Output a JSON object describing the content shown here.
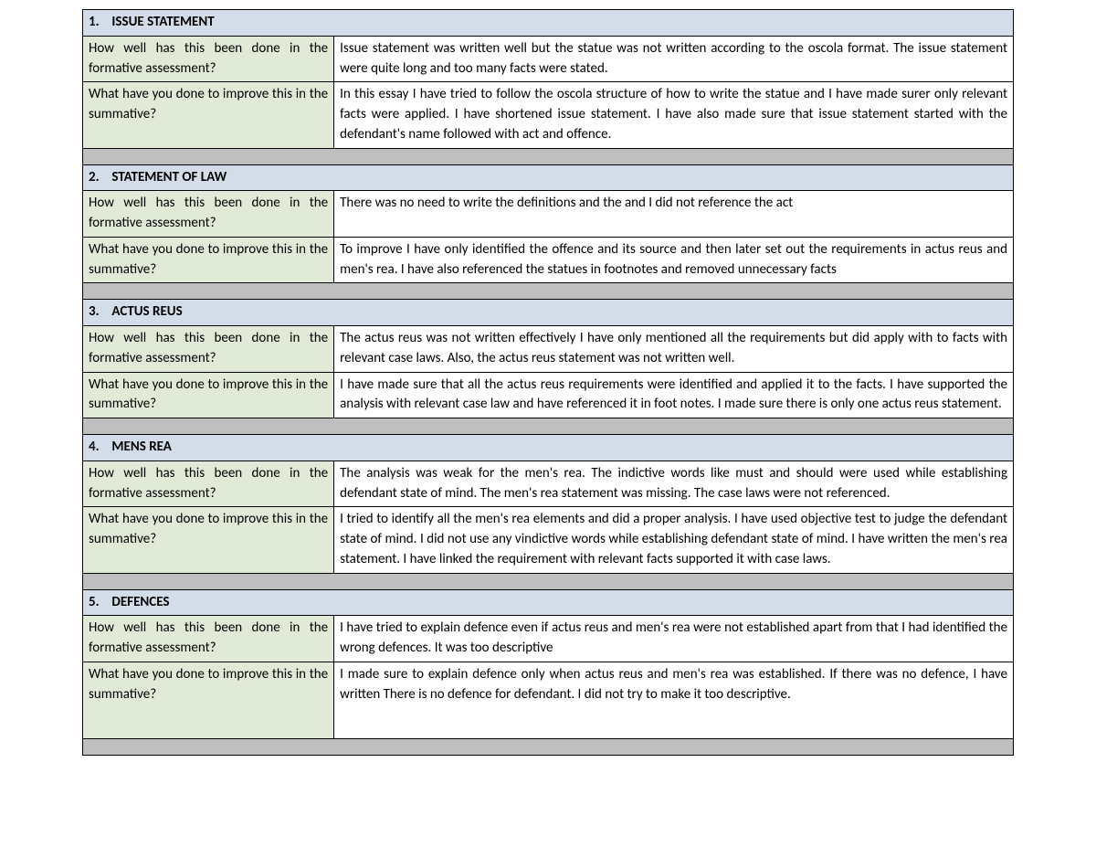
{
  "questions": {
    "q1": "How well has this been done in the formative assessment?",
    "q2": "What have you done to improve this in the summative?"
  },
  "sections": [
    {
      "num": "1.",
      "title": "ISSUE STATEMENT",
      "a1": "Issue statement was written well but the statue was not written according to the oscola format. The issue statement were quite long and too many facts were stated.",
      "a2": "In this essay I have tried to follow the oscola structure of how to write the statue and I have made surer only relevant facts were applied. I have shortened issue statement. I have also made sure that issue statement started with the defendant's name followed with act and offence."
    },
    {
      "num": "2.",
      "title": "STATEMENT OF LAW",
      "a1": "There was no need to write the definitions and the and I did not reference the act",
      "a2": "To improve I have only identified the offence and its source and then later set out the requirements in actus reus and men's rea. I have also referenced the statues in footnotes and removed unnecessary facts"
    },
    {
      "num": "3.",
      "title": "ACTUS REUS",
      "a1": "The actus reus was not written effectively I have only mentioned all the requirements but did apply with to facts with relevant case laws. Also, the actus reus statement was not written well.",
      "a2": "I have made sure that all the actus reus requirements were identified and applied it to the facts. I have supported the analysis with relevant case law and have referenced it in foot notes. I made sure there is only one actus reus statement."
    },
    {
      "num": "4.",
      "title": "MENS REA",
      "a1": "The analysis was weak for the men's rea. The indictive words like must and should were used while establishing defendant state of mind. The men's rea statement was missing. The case laws were not referenced.",
      "a2": "I tried to identify all the men's rea elements and did a proper analysis. I have used objective test to judge the defendant state of mind. I did not use any vindictive words while establishing defendant state of mind. I have written the men's rea statement. I have linked the requirement with relevant facts supported it with case laws."
    },
    {
      "num": "5.",
      "title": "DEFENCES",
      "a1": "I have tried to explain defence even if actus reus and men's rea were not established apart from that I had identified the wrong defences. It was too descriptive",
      "a2": "I made sure to explain defence only when actus reus and men's rea was established. If there was no defence, I have written There is no defence for defendant. I did not try to make it too descriptive."
    }
  ],
  "colors": {
    "header_bg": "#d3dce9",
    "question_bg": "#e0ead7",
    "spacer_bg": "#bfbfbf",
    "border": "#000000",
    "text": "#000000"
  }
}
